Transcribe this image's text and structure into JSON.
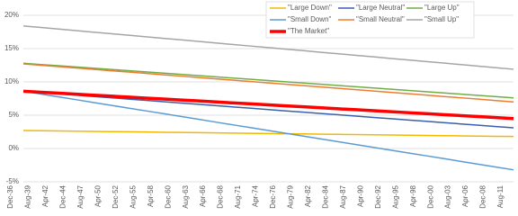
{
  "chart_data": {
    "type": "line",
    "categories": [
      "Dec-36",
      "Aug-39",
      "Apr-42",
      "Dec-44",
      "Aug-47",
      "Apr-50",
      "Dec-52",
      "Aug-55",
      "Apr-58",
      "Dec-60",
      "Aug-63",
      "Apr-66",
      "Dec-68",
      "Aug-71",
      "Apr-74",
      "Dec-76",
      "Aug-79",
      "Apr-82",
      "Dec-84",
      "Aug-87",
      "Apr-90",
      "Dec-92",
      "Aug-95",
      "Apr-98",
      "Dec-00",
      "Aug-03",
      "Apr-06",
      "Dec-08",
      "Aug-11"
    ],
    "series": [
      {
        "name": "\"Large Down\"",
        "color": "#f5b800",
        "values": [
          2.7,
          2.67,
          2.64,
          2.6,
          2.57,
          2.54,
          2.51,
          2.48,
          2.44,
          2.41,
          2.38,
          2.35,
          2.31,
          2.28,
          2.25,
          2.22,
          2.19,
          2.15,
          2.12,
          2.09,
          2.06,
          2.02,
          1.99,
          1.96,
          1.93,
          1.9,
          1.86,
          1.83,
          1.8
        ]
      },
      {
        "name": "\"Large Neutral\"",
        "color": "#3a5fad",
        "values": [
          8.6,
          8.4,
          8.21,
          8.01,
          7.81,
          7.62,
          7.42,
          7.23,
          7.03,
          6.83,
          6.64,
          6.44,
          6.24,
          6.05,
          5.85,
          5.65,
          5.46,
          5.26,
          5.06,
          4.87,
          4.67,
          4.48,
          4.28,
          4.08,
          3.89,
          3.69,
          3.49,
          3.3,
          3.1
        ]
      },
      {
        "name": "\"Large Up\"",
        "color": "#70ad47",
        "values": [
          12.8,
          12.61,
          12.43,
          12.24,
          12.06,
          11.87,
          11.69,
          11.5,
          11.31,
          11.13,
          10.94,
          10.76,
          10.57,
          10.39,
          10.2,
          10.01,
          9.83,
          9.64,
          9.46,
          9.27,
          9.09,
          8.9,
          8.71,
          8.53,
          8.34,
          8.16,
          7.97,
          7.79,
          7.6
        ]
      },
      {
        "name": "\"Small Down\"",
        "color": "#5b9bd5",
        "values": [
          8.6,
          8.18,
          7.76,
          7.34,
          6.91,
          6.49,
          6.07,
          5.65,
          5.23,
          4.81,
          4.39,
          3.96,
          3.54,
          3.12,
          2.7,
          2.28,
          1.86,
          1.44,
          1.01,
          0.59,
          0.17,
          -0.25,
          -0.67,
          -1.09,
          -1.51,
          -1.94,
          -2.36,
          -2.78,
          -3.2
        ]
      },
      {
        "name": "\"Small Neutral\"",
        "color": "#ed7d31",
        "values": [
          12.7,
          12.5,
          12.29,
          12.09,
          11.89,
          11.68,
          11.48,
          11.28,
          11.07,
          10.87,
          10.66,
          10.46,
          10.26,
          10.05,
          9.85,
          9.65,
          9.44,
          9.24,
          9.04,
          8.83,
          8.63,
          8.43,
          8.22,
          8.02,
          7.81,
          7.61,
          7.41,
          7.2,
          7.0
        ]
      },
      {
        "name": "\"Small Up\"",
        "color": "#a5a5a5",
        "values": [
          18.4,
          18.17,
          17.94,
          17.7,
          17.47,
          17.24,
          17.01,
          16.78,
          16.54,
          16.31,
          16.08,
          15.85,
          15.61,
          15.38,
          15.15,
          14.92,
          14.69,
          14.45,
          14.22,
          13.99,
          13.76,
          13.52,
          13.29,
          13.06,
          12.83,
          12.6,
          12.36,
          12.13,
          11.9
        ]
      },
      {
        "name": "\"The Market\"",
        "color": "#ff0000",
        "values": [
          8.6,
          8.45,
          8.31,
          8.16,
          8.01,
          7.87,
          7.72,
          7.57,
          7.43,
          7.28,
          7.14,
          6.99,
          6.84,
          6.7,
          6.55,
          6.4,
          6.26,
          6.11,
          5.96,
          5.82,
          5.67,
          5.52,
          5.38,
          5.23,
          5.09,
          4.94,
          4.79,
          4.65,
          4.5
        ]
      }
    ],
    "ylim": [
      -5,
      20
    ],
    "yticks": [
      {
        "value": -5,
        "label": "-5%"
      },
      {
        "value": 0,
        "label": "0%"
      },
      {
        "value": 5,
        "label": "5%"
      },
      {
        "value": 10,
        "label": "10%"
      },
      {
        "value": 15,
        "label": "15%"
      },
      {
        "value": 20,
        "label": "20%"
      }
    ],
    "grid": true,
    "legend": "top-right"
  }
}
